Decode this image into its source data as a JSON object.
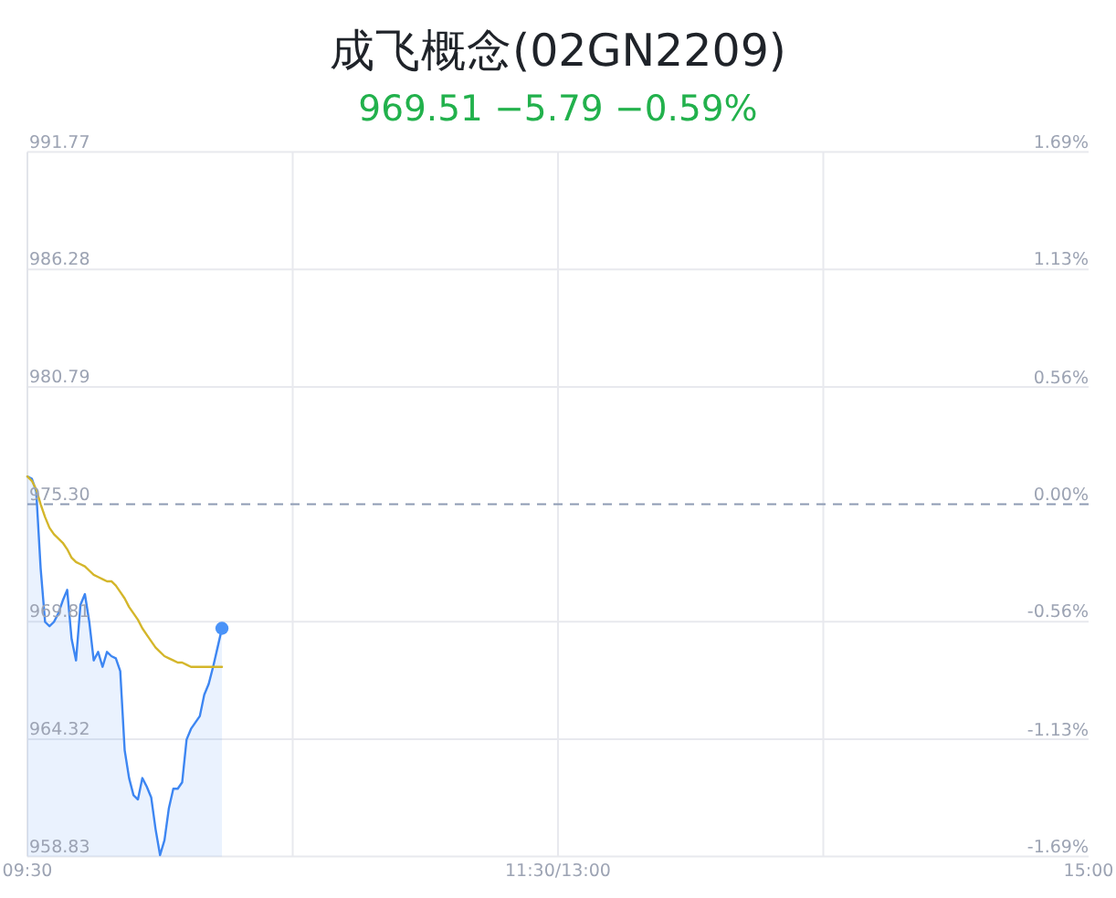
{
  "chart_data": {
    "type": "line",
    "title": "成飞概念(02GN2209)",
    "subtitle": "969.51 −5.79 −0.59%",
    "categories": [
      "09:30",
      null,
      null,
      null,
      null,
      null,
      null,
      null,
      null,
      null,
      null,
      null,
      null,
      null,
      null,
      null,
      null,
      null,
      null,
      null,
      null,
      null,
      null,
      null,
      null,
      null,
      null,
      null,
      null,
      null,
      null,
      null,
      null,
      null,
      null,
      null,
      null,
      null,
      null,
      null,
      null,
      null,
      null,
      null,
      null,
      null,
      null,
      null,
      null,
      null,
      null,
      null,
      null,
      null,
      null,
      null,
      null,
      null,
      null,
      null,
      null,
      null,
      null,
      null,
      null,
      null,
      null,
      null,
      null,
      null,
      null,
      null,
      null,
      null,
      null,
      null,
      null,
      null,
      null,
      null,
      null,
      null,
      null,
      null,
      null,
      null,
      null,
      null,
      null,
      null,
      null,
      null,
      null,
      null,
      null,
      null,
      null,
      null,
      null,
      null,
      null,
      null,
      null,
      null,
      null,
      null,
      null,
      null,
      null,
      null,
      null,
      null,
      null,
      null,
      null,
      null,
      null,
      null,
      null,
      null,
      "11:30/13:00",
      null,
      null,
      null,
      null,
      null,
      null,
      null,
      null,
      null,
      null,
      null,
      null,
      null,
      null,
      null,
      null,
      null,
      null,
      null,
      null,
      null,
      null,
      null,
      null,
      null,
      null,
      null,
      null,
      null,
      null,
      null,
      null,
      null,
      null,
      null,
      null,
      null,
      null,
      null,
      null,
      null,
      null,
      null,
      null,
      null,
      null,
      null,
      null,
      null,
      null,
      null,
      null,
      null,
      null,
      null,
      null,
      null,
      null,
      null,
      null,
      null,
      null,
      null,
      null,
      null,
      null,
      null,
      null,
      null,
      null,
      null,
      null,
      null,
      null,
      null,
      null,
      null,
      null,
      null,
      null,
      null,
      null,
      null,
      null,
      null,
      null,
      null,
      null,
      null,
      null,
      null,
      null,
      null,
      null,
      null,
      null,
      null,
      null,
      null,
      null,
      null,
      null,
      null,
      null,
      null,
      null,
      null,
      null,
      null,
      null,
      null,
      null,
      null,
      null,
      null,
      null,
      null,
      null,
      null,
      "15:00"
    ],
    "ylim": [
      958.83,
      991.77
    ],
    "yticks": [
      958.83,
      964.32,
      969.81,
      {
        "value": 975.3,
        "label": "975.30"
      },
      980.79,
      986.28,
      991.77
    ],
    "y2lim": [
      -1.69,
      1.69
    ],
    "y2ticks": [
      {
        "value": -1.69,
        "label": "-1.69%"
      },
      {
        "value": -1.13,
        "label": "-1.13%"
      },
      {
        "value": -0.56,
        "label": "-0.56%"
      },
      {
        "value": 0,
        "label": "0.00%"
      },
      {
        "value": 0.56,
        "label": "0.56%"
      },
      {
        "value": 1.13,
        "label": "1.13%"
      },
      {
        "value": 1.69,
        "label": "1.69%"
      }
    ],
    "grid": true,
    "ref_lines": [
      {
        "axis": "y",
        "value": 975.3,
        "color": "#8e9bb4",
        "line_style": "dashed"
      }
    ],
    "series": [
      {
        "type": "area",
        "color": "#3d86f2",
        "values": [
          976.6,
          976.5,
          975.9,
          972.3,
          969.8,
          969.6,
          969.8,
          970.2,
          970.8,
          971.3,
          969.0,
          968.0,
          970.6,
          971.1,
          969.8,
          968.0,
          968.4,
          967.7,
          968.4,
          968.2,
          968.1,
          967.5,
          963.8,
          962.5,
          961.7,
          961.5,
          962.5,
          962.1,
          961.6,
          960.1,
          958.9,
          959.6,
          961.1,
          962.0,
          962.0,
          962.3,
          964.3,
          964.8,
          965.1,
          965.4,
          966.4,
          966.9,
          967.7,
          968.6,
          969.5,
          null,
          null,
          null,
          null,
          null,
          null,
          null,
          null,
          null,
          null,
          null,
          null,
          null,
          null,
          null,
          null,
          null,
          null,
          null,
          null,
          null,
          null,
          null,
          null,
          null,
          null,
          null,
          null,
          null,
          null,
          null,
          null,
          null,
          null,
          null,
          null,
          null,
          null,
          null,
          null,
          null,
          null,
          null,
          null,
          null,
          null,
          null,
          null,
          null,
          null,
          null,
          null,
          null,
          null,
          null,
          null,
          null,
          null,
          null,
          null,
          null,
          null,
          null,
          null,
          null,
          null,
          null,
          null,
          null,
          null,
          null,
          null,
          null,
          null,
          null,
          null,
          null,
          null,
          null,
          null,
          null,
          null,
          null,
          null,
          null,
          null,
          null,
          null,
          null,
          null,
          null,
          null,
          null,
          null,
          null,
          null,
          null,
          null,
          null,
          null,
          null,
          null,
          null,
          null,
          null,
          null,
          null,
          null,
          null,
          null,
          null,
          null,
          null,
          null,
          null,
          null,
          null,
          null,
          null,
          null,
          null,
          null,
          null,
          null,
          null,
          null,
          null,
          null,
          null,
          null,
          null,
          null,
          null,
          null,
          null,
          null,
          null,
          null,
          null,
          null,
          null,
          null,
          null,
          null,
          null,
          null,
          null,
          null,
          null,
          null,
          null,
          null,
          null,
          null,
          null,
          null,
          null,
          null,
          null,
          null,
          null,
          null,
          null,
          null,
          null,
          null,
          null,
          null,
          null,
          null,
          null,
          null,
          null,
          null,
          null,
          null,
          null,
          null,
          null,
          null,
          null,
          null,
          null,
          null,
          null,
          null,
          null,
          null,
          null,
          null,
          null,
          null,
          null,
          null,
          null,
          null
        ]
      },
      {
        "color": "#d4b62a",
        "values": [
          976.6,
          976.4,
          976.0,
          975.3,
          974.7,
          974.2,
          973.9,
          973.7,
          973.5,
          973.2,
          972.8,
          972.6,
          972.5,
          972.4,
          972.2,
          972.0,
          971.9,
          971.8,
          971.7,
          971.7,
          971.5,
          971.2,
          970.9,
          970.5,
          970.2,
          969.9,
          969.5,
          969.2,
          968.9,
          968.6,
          968.4,
          968.2,
          968.1,
          968.0,
          967.9,
          967.9,
          967.8,
          967.7,
          967.7,
          967.7,
          967.7,
          967.7,
          967.7,
          967.7,
          967.7,
          null,
          null,
          null,
          null,
          null,
          null,
          null,
          null,
          null,
          null,
          null,
          null,
          null,
          null,
          null,
          null,
          null,
          null,
          null,
          null,
          null,
          null,
          null,
          null,
          null,
          null,
          null,
          null,
          null,
          null,
          null,
          null,
          null,
          null,
          null,
          null,
          null,
          null,
          null,
          null,
          null,
          null,
          null,
          null,
          null,
          null,
          null,
          null,
          null,
          null,
          null,
          null,
          null,
          null,
          null,
          null,
          null,
          null,
          null,
          null,
          null,
          null,
          null,
          null,
          null,
          null,
          null,
          null,
          null,
          null,
          null,
          null,
          null,
          null,
          null,
          null,
          null,
          null,
          null,
          null,
          null,
          null,
          null,
          null,
          null,
          null,
          null,
          null,
          null,
          null,
          null,
          null,
          null,
          null,
          null,
          null,
          null,
          null,
          null,
          null,
          null,
          null,
          null,
          null,
          null,
          null,
          null,
          null,
          null,
          null,
          null,
          null,
          null,
          null,
          null,
          null,
          null,
          null,
          null,
          null,
          null,
          null,
          null,
          null,
          null,
          null,
          null,
          null,
          null,
          null,
          null,
          null,
          null,
          null,
          null,
          null,
          null,
          null,
          null,
          null,
          null,
          null,
          null,
          null,
          null,
          null,
          null,
          null,
          null,
          null,
          null,
          null,
          null,
          null,
          null,
          null,
          null,
          null,
          null,
          null,
          null,
          null,
          null,
          null,
          null,
          null,
          null,
          null,
          null,
          null,
          null,
          null,
          null,
          null,
          null,
          null,
          null,
          null,
          null,
          null,
          null,
          null,
          null,
          null,
          null,
          null,
          null,
          null,
          null,
          null,
          null,
          null,
          null,
          null,
          null,
          null
        ]
      },
      {
        "type": "scatter",
        "color": "#4a93f8",
        "marker": "circle",
        "values": [
          null,
          null,
          null,
          null,
          null,
          null,
          null,
          null,
          null,
          null,
          null,
          null,
          null,
          null,
          null,
          null,
          null,
          null,
          null,
          null,
          null,
          null,
          null,
          null,
          null,
          null,
          null,
          null,
          null,
          null,
          null,
          null,
          null,
          null,
          null,
          null,
          null,
          null,
          null,
          null,
          null,
          null,
          null,
          null,
          969.5,
          null,
          null,
          null,
          null,
          null,
          null,
          null,
          null,
          null,
          null,
          null,
          null,
          null,
          null,
          null,
          null,
          null,
          null,
          null,
          null,
          null,
          null,
          null,
          null,
          null,
          null,
          null,
          null,
          null,
          null,
          null,
          null,
          null,
          null,
          null,
          null,
          null,
          null,
          null,
          null,
          null,
          null,
          null,
          null,
          null,
          null,
          null,
          null,
          null,
          null,
          null,
          null,
          null,
          null,
          null,
          null,
          null,
          null,
          null,
          null,
          null,
          null,
          null,
          null,
          null,
          null,
          null,
          null,
          null,
          null,
          null,
          null,
          null,
          null,
          null,
          null,
          null,
          null,
          null,
          null,
          null,
          null,
          null,
          null,
          null,
          null,
          null,
          null,
          null,
          null,
          null,
          null,
          null,
          null,
          null,
          null,
          null,
          null,
          null,
          null,
          null,
          null,
          null,
          null,
          null,
          null,
          null,
          null,
          null,
          null,
          null,
          null,
          null,
          null,
          null,
          null,
          null,
          null,
          null,
          null,
          null,
          null,
          null,
          null,
          null,
          null,
          null,
          null,
          null,
          null,
          null,
          null,
          null,
          null,
          null,
          null,
          null,
          null,
          null,
          null,
          null,
          null,
          null,
          null,
          null,
          null,
          null,
          null,
          null,
          null,
          null,
          null,
          null,
          null,
          null,
          null,
          null,
          null,
          null,
          null,
          null,
          null,
          null,
          null,
          null,
          null,
          null,
          null,
          null,
          null,
          null,
          null,
          null,
          null,
          null,
          null,
          null,
          null,
          null,
          null,
          null,
          null,
          null,
          null,
          null,
          null,
          null,
          null,
          null,
          null,
          null,
          null,
          null,
          null,
          null,
          null
        ]
      }
    ]
  }
}
